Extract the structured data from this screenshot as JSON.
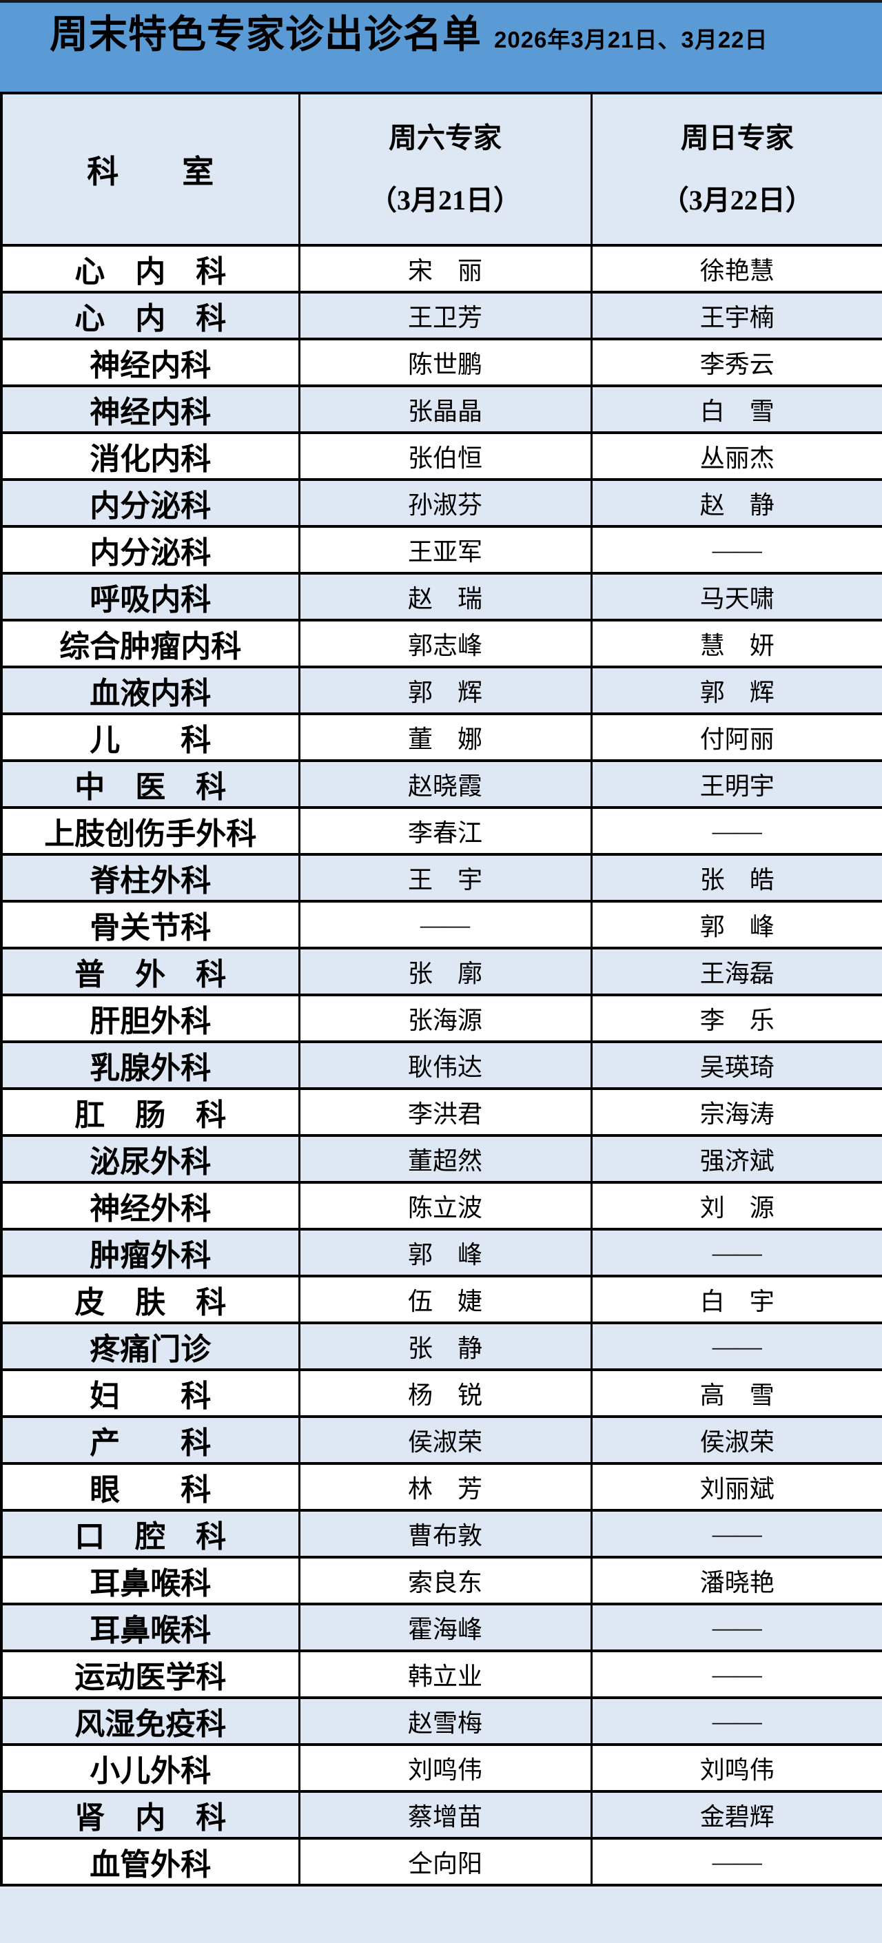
{
  "banner": {
    "title": "周末特色专家诊出诊名单",
    "dates": "2026年3月21日、3月22日"
  },
  "table": {
    "header": {
      "dept": "科　　室",
      "saturday_line1": "周六专家",
      "saturday_line2": "（3月21日）",
      "sunday_line1": "周日专家",
      "sunday_line2": "（3月22日）"
    },
    "empty_marker": "——",
    "rows": [
      {
        "dept": "心　内　科",
        "sat": "宋　丽",
        "sun": "徐艳慧"
      },
      {
        "dept": "心　内　科",
        "sat": "王卫芳",
        "sun": "王宇楠"
      },
      {
        "dept": "神经内科",
        "sat": "陈世鹏",
        "sun": "李秀云"
      },
      {
        "dept": "神经内科",
        "sat": "张晶晶",
        "sun": "白　雪"
      },
      {
        "dept": "消化内科",
        "sat": "张伯恒",
        "sun": "丛丽杰"
      },
      {
        "dept": "内分泌科",
        "sat": "孙淑芬",
        "sun": "赵　静"
      },
      {
        "dept": "内分泌科",
        "sat": "王亚军",
        "sun": "——"
      },
      {
        "dept": "呼吸内科",
        "sat": "赵　瑞",
        "sun": "马天啸"
      },
      {
        "dept": "综合肿瘤内科",
        "sat": "郭志峰",
        "sun": "慧　妍"
      },
      {
        "dept": "血液内科",
        "sat": "郭　辉",
        "sun": "郭　辉"
      },
      {
        "dept": "儿　　科",
        "sat": "董　娜",
        "sun": "付阿丽"
      },
      {
        "dept": "中　医　科",
        "sat": "赵晓霞",
        "sun": "王明宇"
      },
      {
        "dept": "上肢创伤手外科",
        "sat": "李春江",
        "sun": "——"
      },
      {
        "dept": "脊柱外科",
        "sat": "王　宇",
        "sun": "张　皓"
      },
      {
        "dept": "骨关节科",
        "sat": "——",
        "sun": "郭　峰"
      },
      {
        "dept": "普　外　科",
        "sat": "张　廓",
        "sun": "王海磊"
      },
      {
        "dept": "肝胆外科",
        "sat": "张海源",
        "sun": "李　乐"
      },
      {
        "dept": "乳腺外科",
        "sat": "耿伟达",
        "sun": "吴瑛琦"
      },
      {
        "dept": "肛　肠　科",
        "sat": "李洪君",
        "sun": "宗海涛"
      },
      {
        "dept": "泌尿外科",
        "sat": "董超然",
        "sun": "强济斌"
      },
      {
        "dept": "神经外科",
        "sat": "陈立波",
        "sun": "刘　源"
      },
      {
        "dept": "肿瘤外科",
        "sat": "郭　峰",
        "sun": "——"
      },
      {
        "dept": "皮　肤　科",
        "sat": "伍　婕",
        "sun": "白　宇"
      },
      {
        "dept": "疼痛门诊",
        "sat": "张　静",
        "sun": "——"
      },
      {
        "dept": "妇　　科",
        "sat": "杨　锐",
        "sun": "高　雪"
      },
      {
        "dept": "产　　科",
        "sat": "侯淑荣",
        "sun": "侯淑荣"
      },
      {
        "dept": "眼　　科",
        "sat": "林　芳",
        "sun": "刘丽斌"
      },
      {
        "dept": "口　腔　科",
        "sat": "曹布敦",
        "sun": "——"
      },
      {
        "dept": "耳鼻喉科",
        "sat": "索良东",
        "sun": "潘晓艳"
      },
      {
        "dept": "耳鼻喉科",
        "sat": "霍海峰",
        "sun": "——"
      },
      {
        "dept": "运动医学科",
        "sat": "韩立业",
        "sun": "——"
      },
      {
        "dept": "风湿免疫科",
        "sat": "赵雪梅",
        "sun": "——"
      },
      {
        "dept": "小儿外科",
        "sat": "刘鸣伟",
        "sun": "刘鸣伟"
      },
      {
        "dept": "肾　内　科",
        "sat": "蔡增苗",
        "sun": "金碧辉"
      },
      {
        "dept": "血管外科",
        "sat": "仝向阳",
        "sun": "——"
      }
    ]
  },
  "colors": {
    "banner_blue": "#5b9bd5",
    "row_light_blue": "#dde8f4",
    "border_black": "#000000"
  }
}
